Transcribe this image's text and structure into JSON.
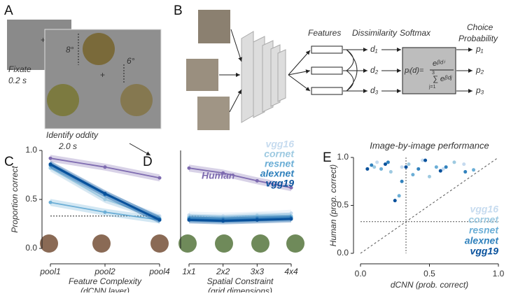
{
  "panel_a": {
    "label": "A",
    "fixate": "Fixate",
    "fixate_time": "0.2 s",
    "angle1": "8°",
    "angle2": "6°",
    "identify": "Identify oddity",
    "identify_time": "2.0 s"
  },
  "panel_b": {
    "label": "B",
    "features": "Features",
    "dissimilarity": "Dissimilarity",
    "softmax": "Softmax",
    "choice": "Choice",
    "probability": "Probability",
    "d": [
      "d₁",
      "d₂",
      "d₃"
    ],
    "p": [
      "p₁",
      "p₂",
      "p₃"
    ],
    "formula_lhs": "pᵢ(d)=",
    "numerator": "eᵝᵈⁱ",
    "denominator": "∑ eᵝᵈʲ",
    "sum_top": "3",
    "sum_bottom": "j=1"
  },
  "chart_data": [
    {
      "type": "line",
      "panel": "C",
      "ylabel": "Proportion correct",
      "xlabel": "Feature Complexity",
      "xlabel2": "(dCNN layer)",
      "categories": [
        "pool1",
        "pool2",
        "pool4"
      ],
      "ylim": [
        0,
        1
      ],
      "yticks": [
        {
          "value": 0,
          "label": "0.0"
        },
        {
          "value": 0.5,
          "label": "0.5"
        },
        {
          "value": 1,
          "label": "1.0"
        }
      ],
      "chance": 0.33,
      "series": [
        {
          "color": "#7e6bb0",
          "values": [
            0.92,
            0.83,
            0.72
          ]
        },
        {
          "color": "#c6dbef",
          "values": [
            0.83,
            0.5,
            0.33
          ]
        },
        {
          "color": "#9ecae1",
          "values": [
            0.82,
            0.5,
            0.31
          ]
        },
        {
          "color": "#6baed6",
          "values": [
            0.47,
            0.37,
            0.29
          ]
        },
        {
          "color": "#3182bd",
          "values": [
            0.85,
            0.55,
            0.3
          ]
        },
        {
          "color": "#08519c",
          "values": [
            0.86,
            0.56,
            0.29
          ]
        }
      ]
    },
    {
      "type": "line",
      "panel": "D",
      "xlabel": "Spatial Constraint",
      "xlabel2": "(grid dimensions)",
      "categories": [
        "1x1",
        "2x2",
        "3x3",
        "4x4"
      ],
      "ylim": [
        0,
        1
      ],
      "chance": 0.33,
      "series": [
        {
          "name": "Human",
          "color": "#7e6bb0",
          "values": [
            0.82,
            0.77,
            0.69,
            0.62
          ]
        },
        {
          "name": "vgg16",
          "color": "#c6dbef",
          "values": [
            0.34,
            0.33,
            0.34,
            0.36
          ]
        },
        {
          "name": "cornet",
          "color": "#9ecae1",
          "values": [
            0.32,
            0.31,
            0.33,
            0.33
          ]
        },
        {
          "name": "resnet",
          "color": "#6baed6",
          "values": [
            0.31,
            0.3,
            0.31,
            0.32
          ]
        },
        {
          "name": "alexnet",
          "color": "#3182bd",
          "values": [
            0.3,
            0.29,
            0.3,
            0.31
          ]
        },
        {
          "name": "vgg19",
          "color": "#08519c",
          "values": [
            0.29,
            0.28,
            0.29,
            0.3
          ]
        }
      ]
    },
    {
      "type": "scatter",
      "panel": "E",
      "title": "Image-by-image performance",
      "xlabel": "dCNN (prob. correct)",
      "ylabel": "Human (prop. correct)",
      "xlim": [
        0,
        1
      ],
      "ylim": [
        0,
        1
      ],
      "xticks": [
        {
          "value": 0,
          "label": "0.0"
        },
        {
          "value": 0.5,
          "label": "0.5"
        },
        {
          "value": 1,
          "label": "1.0"
        }
      ],
      "yticks": [
        {
          "value": 0,
          "label": "0.0"
        },
        {
          "value": 0.5,
          "label": "0.5"
        },
        {
          "value": 1,
          "label": "1.0"
        }
      ],
      "chance": 0.33,
      "legend": "lower right",
      "series": [
        {
          "name": "vgg16",
          "color": "#c6dbef",
          "x": [
            0.12,
            0.3,
            0.45,
            0.6,
            0.75
          ],
          "y": [
            0.95,
            0.9,
            0.97,
            0.88,
            0.93
          ]
        },
        {
          "name": "cornet",
          "color": "#9ecae1",
          "x": [
            0.1,
            0.22,
            0.35,
            0.5,
            0.68
          ],
          "y": [
            0.9,
            0.85,
            0.93,
            0.8,
            0.95
          ]
        },
        {
          "name": "resnet",
          "color": "#6baed6",
          "x": [
            0.15,
            0.28,
            0.38,
            0.55,
            0.82
          ],
          "y": [
            0.88,
            0.6,
            0.82,
            0.9,
            0.87
          ]
        },
        {
          "name": "alexnet",
          "color": "#3182bd",
          "x": [
            0.08,
            0.2,
            0.3,
            0.42,
            0.62,
            0.76
          ],
          "y": [
            0.92,
            0.95,
            0.75,
            0.88,
            0.9,
            0.85
          ]
        },
        {
          "name": "vgg19",
          "color": "#08519c",
          "x": [
            0.05,
            0.18,
            0.25,
            0.33,
            0.47,
            0.58
          ],
          "y": [
            0.88,
            0.93,
            0.55,
            0.9,
            0.97,
            0.86
          ]
        }
      ]
    }
  ]
}
